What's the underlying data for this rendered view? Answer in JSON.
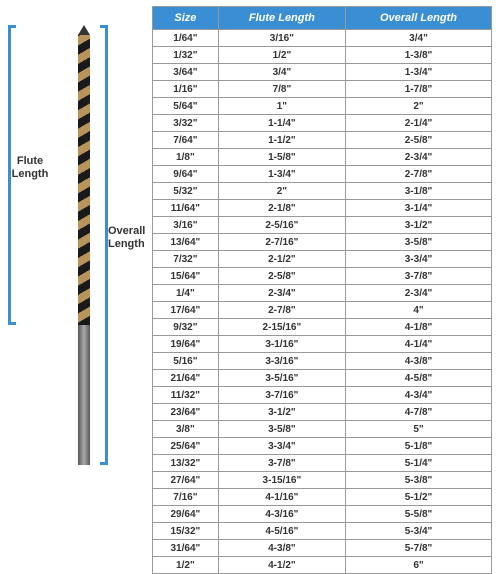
{
  "diagram": {
    "flute_label": "Flute\nLength",
    "overall_label": "Overall\nLength"
  },
  "table": {
    "columns": [
      "Size",
      "Flute Length",
      "Overall Length"
    ],
    "rows": [
      [
        "1/64\"",
        "3/16\"",
        "3/4\""
      ],
      [
        "1/32\"",
        "1/2\"",
        "1-3/8\""
      ],
      [
        "3/64\"",
        "3/4\"",
        "1-3/4\""
      ],
      [
        "1/16\"",
        "7/8\"",
        "1-7/8\""
      ],
      [
        "5/64\"",
        "1\"",
        "2\""
      ],
      [
        "3/32\"",
        "1-1/4\"",
        "2-1/4\""
      ],
      [
        "7/64\"",
        "1-1/2\"",
        "2-5/8\""
      ],
      [
        "1/8\"",
        "1-5/8\"",
        "2-3/4\""
      ],
      [
        "9/64\"",
        "1-3/4\"",
        "2-7/8\""
      ],
      [
        "5/32\"",
        "2\"",
        "3-1/8\""
      ],
      [
        "11/64\"",
        "2-1/8\"",
        "3-1/4\""
      ],
      [
        "3/16\"",
        "2-5/16\"",
        "3-1/2\""
      ],
      [
        "13/64\"",
        "2-7/16\"",
        "3-5/8\""
      ],
      [
        "7/32\"",
        "2-1/2\"",
        "3-3/4\""
      ],
      [
        "15/64\"",
        "2-5/8\"",
        "3-7/8\""
      ],
      [
        "1/4\"",
        "2-3/4\"",
        "2-3/4\""
      ],
      [
        "17/64\"",
        "2-7/8\"",
        "4\""
      ],
      [
        "9/32\"",
        "2-15/16\"",
        "4-1/8\""
      ],
      [
        "19/64\"",
        "3-1/16\"",
        "4-1/4\""
      ],
      [
        "5/16\"",
        "3-3/16\"",
        "4-3/8\""
      ],
      [
        "21/64\"",
        "3-5/16\"",
        "4-5/8\""
      ],
      [
        "11/32\"",
        "3-7/16\"",
        "4-3/4\""
      ],
      [
        "23/64\"",
        "3-1/2\"",
        "4-7/8\""
      ],
      [
        "3/8\"",
        "3-5/8\"",
        "5\""
      ],
      [
        "25/64\"",
        "3-3/4\"",
        "5-1/8\""
      ],
      [
        "13/32\"",
        "3-7/8\"",
        "5-1/4\""
      ],
      [
        "27/64\"",
        "3-15/16\"",
        "5-3/8\""
      ],
      [
        "7/16\"",
        "4-1/16\"",
        "5-1/2\""
      ],
      [
        "29/64\"",
        "4-3/16\"",
        "5-5/8\""
      ],
      [
        "15/32\"",
        "4-5/16\"",
        "5-3/4\""
      ],
      [
        "31/64\"",
        "4-3/8\"",
        "5-7/8\""
      ],
      [
        "1/2\"",
        "4-1/2\"",
        "6\""
      ]
    ],
    "header_bg": "#3a8fd4",
    "header_color": "#ffffff",
    "border_color": "#999999",
    "text_color": "#333333"
  }
}
